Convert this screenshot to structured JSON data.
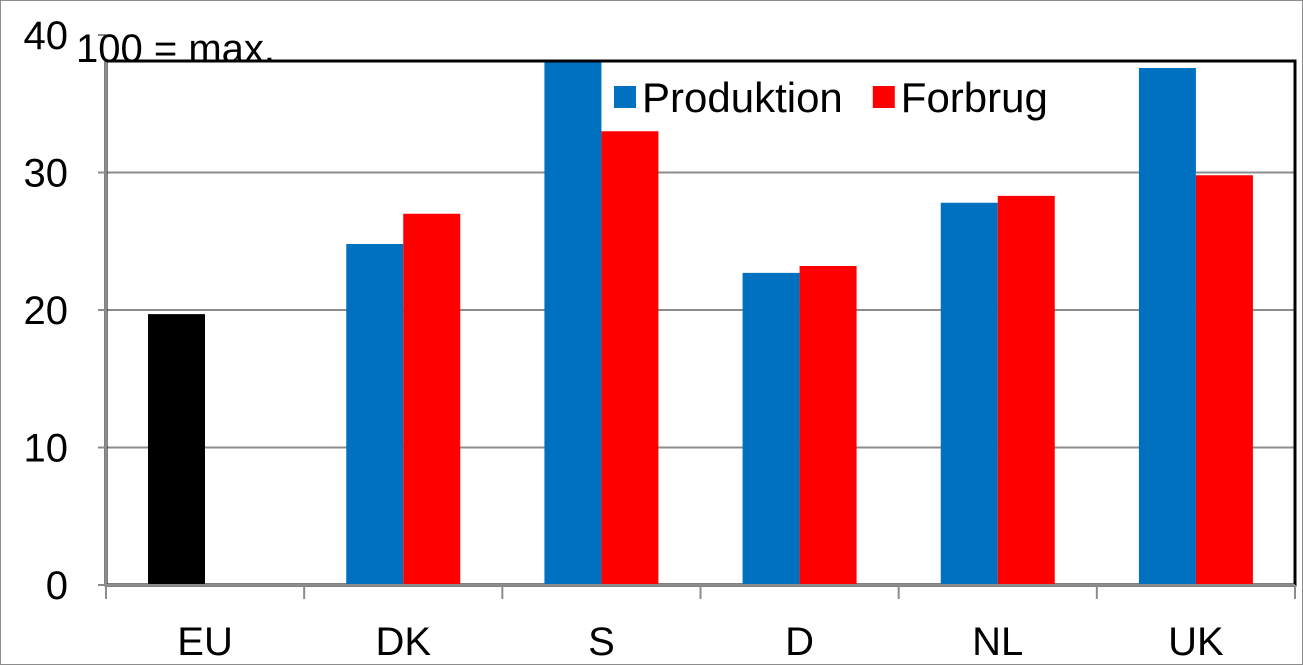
{
  "chart_data": {
    "type": "bar",
    "categories": [
      "EU",
      "DK",
      "S",
      "D",
      "NL",
      "UK"
    ],
    "series": [
      {
        "name": "",
        "color": "#000000",
        "values": [
          19.7,
          null,
          null,
          null,
          null,
          null
        ]
      },
      {
        "name": "Produktion",
        "color": "#0070c0",
        "values": [
          null,
          24.8,
          38.0,
          22.7,
          27.8,
          37.6
        ]
      },
      {
        "name": "Forbrug",
        "color": "#ff0000",
        "values": [
          null,
          27.0,
          33.0,
          23.2,
          28.3,
          29.8
        ]
      }
    ],
    "ylim": [
      0,
      40
    ],
    "yticks": [
      "0",
      "10",
      "20",
      "30",
      "40"
    ],
    "annotation": "100 = max.",
    "grid": true,
    "legend": {
      "position": "top-right",
      "entries": [
        "Produktion",
        "Forbrug"
      ]
    },
    "title": "",
    "xlabel": "",
    "ylabel": ""
  }
}
